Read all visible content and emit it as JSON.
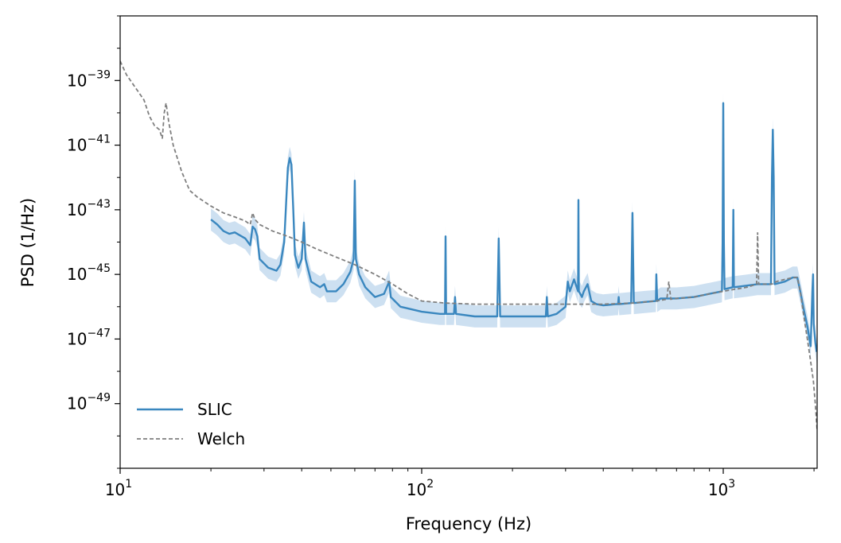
{
  "chart_data": {
    "type": "line",
    "title": "",
    "xlabel": "Frequency (Hz)",
    "ylabel": "PSD (1/Hz)",
    "x_scale": "log",
    "y_scale": "log",
    "xlim": [
      10,
      2048
    ],
    "ylim": [
      1e-51,
      1e-37
    ],
    "grid": false,
    "legend_position": "lower-left",
    "x_ticks": [
      {
        "value": 10,
        "base": "10",
        "exp": "1"
      },
      {
        "value": 100,
        "base": "10",
        "exp": "2"
      },
      {
        "value": 1000,
        "base": "10",
        "exp": "3"
      }
    ],
    "y_ticks": [
      {
        "value": 1e-39,
        "base": "10",
        "exp": "−39"
      },
      {
        "value": 1e-41,
        "base": "10",
        "exp": "−41"
      },
      {
        "value": 1e-43,
        "base": "10",
        "exp": "−43"
      },
      {
        "value": 1e-45,
        "base": "10",
        "exp": "−45"
      },
      {
        "value": 1e-47,
        "base": "10",
        "exp": "−47"
      },
      {
        "value": 1e-49,
        "base": "10",
        "exp": "−49"
      }
    ],
    "series": [
      {
        "name": "SLIC",
        "color": "#3a87bf",
        "band_color": "#bcd6ec",
        "style": "solid",
        "points": [
          [
            20,
            5e-44
          ],
          [
            21,
            3.5e-44
          ],
          [
            22,
            2.2e-44
          ],
          [
            23,
            1.8e-44
          ],
          [
            24,
            2e-44
          ],
          [
            25,
            1.6e-44
          ],
          [
            26,
            1.3e-44
          ],
          [
            27,
            8e-45
          ],
          [
            27.5,
            3e-44
          ],
          [
            28,
            2.5e-44
          ],
          [
            28.5,
            1.5e-44
          ],
          [
            29,
            3e-45
          ],
          [
            31,
            1.6e-45
          ],
          [
            33,
            1.3e-45
          ],
          [
            34,
            2e-45
          ],
          [
            35,
            1e-44
          ],
          [
            36,
            2e-42
          ],
          [
            36.5,
            4e-42
          ],
          [
            37,
            2.5e-42
          ],
          [
            37.5,
            1e-43
          ],
          [
            38,
            4e-45
          ],
          [
            39,
            1.6e-45
          ],
          [
            40,
            3e-45
          ],
          [
            40.7,
            4e-44
          ],
          [
            41.2,
            3e-45
          ],
          [
            43,
            6e-46
          ],
          [
            46,
            4e-46
          ],
          [
            47.5,
            5e-46
          ],
          [
            48.5,
            3e-46
          ],
          [
            52,
            3e-46
          ],
          [
            55,
            5e-46
          ],
          [
            58,
            1.2e-45
          ],
          [
            59.5,
            3e-45
          ],
          [
            60,
            8e-43
          ],
          [
            60.5,
            3e-45
          ],
          [
            62,
            1e-45
          ],
          [
            65,
            4e-46
          ],
          [
            70,
            2e-46
          ],
          [
            75,
            2.5e-46
          ],
          [
            78,
            6e-46
          ],
          [
            79,
            2e-46
          ],
          [
            85,
            1e-46
          ],
          [
            100,
            7e-47
          ],
          [
            115,
            6e-47
          ],
          [
            119.5,
            6e-47
          ],
          [
            120,
            1.5e-44
          ],
          [
            120.5,
            6e-47
          ],
          [
            128,
            6e-47
          ],
          [
            129,
            2e-46
          ],
          [
            130,
            6e-47
          ],
          [
            150,
            5e-47
          ],
          [
            178,
            5e-47
          ],
          [
            180,
            1.3e-44
          ],
          [
            182,
            5e-47
          ],
          [
            200,
            5e-47
          ],
          [
            250,
            5e-47
          ],
          [
            258,
            5e-47
          ],
          [
            260,
            2e-46
          ],
          [
            262,
            5e-47
          ],
          [
            280,
            6e-47
          ],
          [
            300,
            1e-46
          ],
          [
            305,
            6e-46
          ],
          [
            310,
            3e-46
          ],
          [
            320,
            7e-46
          ],
          [
            330,
            3e-46
          ],
          [
            331,
            2e-43
          ],
          [
            332,
            3e-46
          ],
          [
            340,
            2e-46
          ],
          [
            345,
            3e-46
          ],
          [
            355,
            5e-46
          ],
          [
            365,
            1.5e-46
          ],
          [
            380,
            1.2e-46
          ],
          [
            400,
            1.1e-46
          ],
          [
            440,
            1.2e-46
          ],
          [
            448,
            1.2e-46
          ],
          [
            450,
            2e-46
          ],
          [
            452,
            1.2e-46
          ],
          [
            495,
            1.3e-46
          ],
          [
            500,
            8e-44
          ],
          [
            505,
            1.3e-46
          ],
          [
            550,
            1.4e-46
          ],
          [
            598,
            1.5e-46
          ],
          [
            600,
            1e-45
          ],
          [
            604,
            1.5e-46
          ],
          [
            620,
            1.8e-46
          ],
          [
            700,
            1.8e-46
          ],
          [
            800,
            2e-46
          ],
          [
            900,
            2.5e-46
          ],
          [
            990,
            3e-46
          ],
          [
            995,
            1e-44
          ],
          [
            1000,
            2e-40
          ],
          [
            1005,
            1e-44
          ],
          [
            1010,
            3.5e-46
          ],
          [
            1075,
            4e-46
          ],
          [
            1080,
            1e-43
          ],
          [
            1085,
            4e-46
          ],
          [
            1200,
            4.5e-46
          ],
          [
            1300,
            5e-46
          ],
          [
            1440,
            5e-46
          ],
          [
            1450,
            1e-42
          ],
          [
            1460,
            3e-41
          ],
          [
            1470,
            1e-42
          ],
          [
            1480,
            5e-46
          ],
          [
            1600,
            6e-46
          ],
          [
            1700,
            8e-46
          ],
          [
            1760,
            8e-46
          ],
          [
            1800,
            3e-46
          ],
          [
            1850,
            8e-47
          ],
          [
            1900,
            2.5e-47
          ],
          [
            1950,
            6e-48
          ],
          [
            1975,
            3e-46
          ],
          [
            1985,
            1e-45
          ],
          [
            1995,
            3e-47
          ],
          [
            2020,
            8e-48
          ],
          [
            2040,
            4e-48
          ]
        ]
      },
      {
        "name": "Welch",
        "color": "#7f7f7f",
        "style": "dashed",
        "points": [
          [
            10,
            4e-39
          ],
          [
            10.5,
            1.5e-39
          ],
          [
            11,
            8e-40
          ],
          [
            12,
            2.5e-40
          ],
          [
            12.5,
            8e-41
          ],
          [
            13,
            4e-41
          ],
          [
            13.5,
            3e-41
          ],
          [
            13.8,
            1.6e-41
          ],
          [
            14,
            1e-40
          ],
          [
            14.2,
            2e-40
          ],
          [
            14.5,
            5e-41
          ],
          [
            15,
            1e-41
          ],
          [
            16,
            1.5e-42
          ],
          [
            17,
            4e-43
          ],
          [
            18,
            2.5e-43
          ],
          [
            20,
            1.3e-43
          ],
          [
            22,
            8e-44
          ],
          [
            24,
            6e-44
          ],
          [
            26,
            4.5e-44
          ],
          [
            27,
            3.5e-44
          ],
          [
            27.5,
            8e-44
          ],
          [
            28,
            5e-44
          ],
          [
            29,
            3.5e-44
          ],
          [
            32,
            2.2e-44
          ],
          [
            36,
            1.5e-44
          ],
          [
            40,
            1e-44
          ],
          [
            45,
            6e-45
          ],
          [
            50,
            4e-45
          ],
          [
            60,
            2e-45
          ],
          [
            70,
            1e-45
          ],
          [
            80,
            5e-46
          ],
          [
            90,
            2.5e-46
          ],
          [
            100,
            1.5e-46
          ],
          [
            120,
            1.3e-46
          ],
          [
            150,
            1.2e-46
          ],
          [
            200,
            1.2e-46
          ],
          [
            250,
            1.2e-46
          ],
          [
            300,
            1.2e-46
          ],
          [
            400,
            1.2e-46
          ],
          [
            500,
            1.3e-46
          ],
          [
            600,
            1.5e-46
          ],
          [
            650,
            1.7e-46
          ],
          [
            660,
            6e-46
          ],
          [
            670,
            1.7e-46
          ],
          [
            700,
            1.8e-46
          ],
          [
            800,
            2e-46
          ],
          [
            900,
            2.5e-46
          ],
          [
            1000,
            3e-46
          ],
          [
            1100,
            3.5e-46
          ],
          [
            1200,
            4e-46
          ],
          [
            1290,
            5e-46
          ],
          [
            1300,
            2e-44
          ],
          [
            1310,
            5e-46
          ],
          [
            1400,
            5e-46
          ],
          [
            1450,
            5e-46
          ],
          [
            1500,
            6e-46
          ],
          [
            1600,
            7e-46
          ],
          [
            1700,
            8e-46
          ],
          [
            1760,
            8e-46
          ],
          [
            1800,
            3e-46
          ],
          [
            1850,
            5e-47
          ],
          [
            1900,
            1e-47
          ],
          [
            1950,
            2e-48
          ],
          [
            1990,
            5e-49
          ],
          [
            2020,
            1e-49
          ],
          [
            2048,
            1.5e-50
          ]
        ]
      }
    ]
  }
}
